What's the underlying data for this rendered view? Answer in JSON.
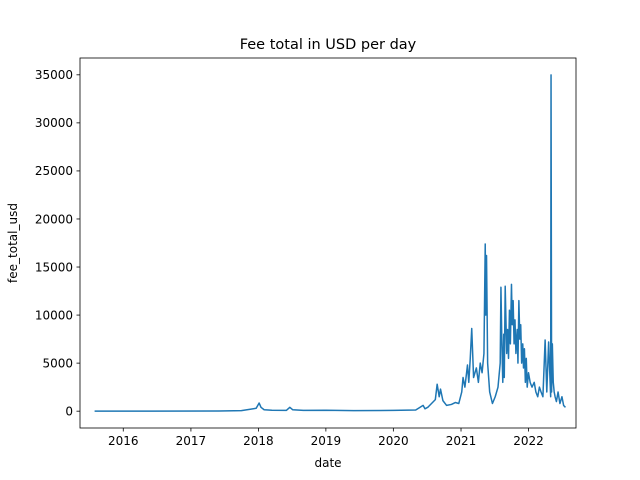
{
  "chart_data": {
    "type": "line",
    "title": "Fee total in USD per day",
    "xlabel": "date",
    "ylabel": "fee_total_usd",
    "xlim": [
      "2015-05-12",
      "2022-09-15"
    ],
    "ylim": [
      -1750,
      36750
    ],
    "x_ticks": [
      "2016",
      "2017",
      "2018",
      "2019",
      "2020",
      "2021",
      "2022"
    ],
    "y_ticks": [
      0,
      5000,
      10000,
      15000,
      20000,
      25000,
      30000,
      35000
    ],
    "y_tick_labels": [
      "0",
      "5000",
      "10000",
      "15000",
      "20000",
      "25000",
      "30000",
      "35000"
    ],
    "grid": false,
    "color": "#1f77b4",
    "series": [
      {
        "name": "",
        "x": [
          "2015-07-30",
          "2016-06-01",
          "2017-06-01",
          "2017-10-01",
          "2017-12-20",
          "2018-01-05",
          "2018-01-15",
          "2018-02-01",
          "2018-03-15",
          "2018-06-01",
          "2018-06-20",
          "2018-07-05",
          "2018-09-01",
          "2019-01-01",
          "2019-06-01",
          "2020-01-01",
          "2020-05-01",
          "2020-06-10",
          "2020-06-20",
          "2020-07-05",
          "2020-08-15",
          "2020-08-25",
          "2020-09-05",
          "2020-09-12",
          "2020-09-25",
          "2020-10-15",
          "2020-11-10",
          "2020-12-01",
          "2020-12-20",
          "2021-01-05",
          "2021-01-12",
          "2021-01-22",
          "2021-02-05",
          "2021-02-12",
          "2021-02-20",
          "2021-02-28",
          "2021-03-10",
          "2021-03-25",
          "2021-04-05",
          "2021-04-15",
          "2021-04-25",
          "2021-05-05",
          "2021-05-12",
          "2021-05-15",
          "2021-05-19",
          "2021-05-25",
          "2021-06-05",
          "2021-06-20",
          "2021-07-05",
          "2021-07-20",
          "2021-08-01",
          "2021-08-05",
          "2021-08-10",
          "2021-08-15",
          "2021-08-20",
          "2021-08-23",
          "2021-08-28",
          "2021-09-05",
          "2021-09-10",
          "2021-09-15",
          "2021-09-20",
          "2021-09-25",
          "2021-10-01",
          "2021-10-05",
          "2021-10-10",
          "2021-10-15",
          "2021-10-20",
          "2021-10-25",
          "2021-11-01",
          "2021-11-05",
          "2021-11-10",
          "2021-11-15",
          "2021-11-20",
          "2021-11-25",
          "2021-12-01",
          "2021-12-05",
          "2021-12-10",
          "2021-12-15",
          "2021-12-20",
          "2021-12-25",
          "2022-01-01",
          "2022-01-10",
          "2022-01-20",
          "2022-02-01",
          "2022-02-10",
          "2022-02-20",
          "2022-03-01",
          "2022-03-10",
          "2022-03-20",
          "2022-04-01",
          "2022-04-10",
          "2022-04-20",
          "2022-04-28",
          "2022-05-01",
          "2022-05-03",
          "2022-05-06",
          "2022-05-10",
          "2022-05-15",
          "2022-05-20",
          "2022-05-25",
          "2022-06-01",
          "2022-06-10",
          "2022-06-20",
          "2022-07-01",
          "2022-07-10",
          "2022-07-20"
        ],
        "y": [
          10,
          10,
          20,
          60,
          300,
          850,
          400,
          150,
          100,
          80,
          400,
          150,
          80,
          100,
          60,
          80,
          120,
          600,
          250,
          400,
          1200,
          2800,
          1500,
          2300,
          1100,
          600,
          700,
          900,
          800,
          2000,
          3500,
          2500,
          4800,
          3000,
          5500,
          8600,
          3500,
          4500,
          3000,
          5000,
          4000,
          6000,
          17400,
          10000,
          16200,
          5000,
          2000,
          800,
          1500,
          2500,
          5000,
          12900,
          7000,
          3000,
          8000,
          3500,
          13000,
          6000,
          8500,
          5500,
          10500,
          7000,
          13200,
          9000,
          11500,
          7000,
          9500,
          6000,
          8500,
          5000,
          11500,
          7500,
          9000,
          5000,
          7000,
          4500,
          6500,
          3000,
          5500,
          2500,
          4000,
          3000,
          2500,
          3000,
          2000,
          1500,
          2500,
          2000,
          1500,
          7400,
          2000,
          7200,
          3000,
          1500,
          35000,
          2000,
          7000,
          3000,
          2000,
          1500,
          1000,
          2000,
          800,
          1500,
          600,
          400
        ]
      }
    ]
  }
}
